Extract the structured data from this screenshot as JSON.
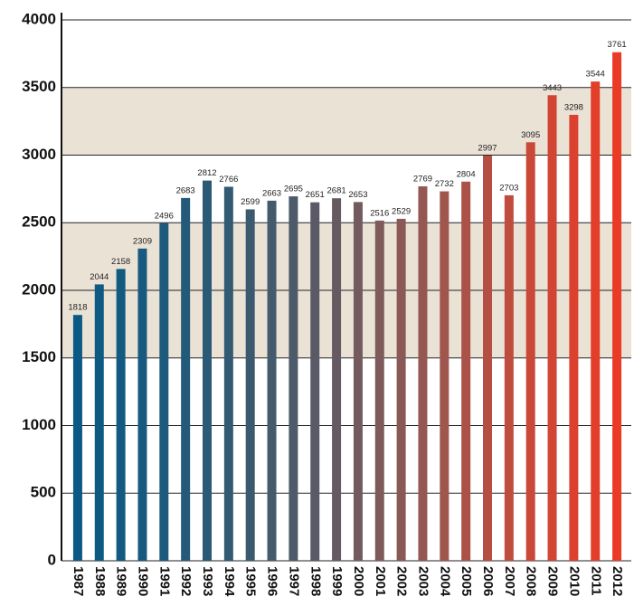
{
  "chart_data": {
    "type": "bar",
    "categories": [
      "1987",
      "1988",
      "1989",
      "1990",
      "1991",
      "1992",
      "1993",
      "1994",
      "1995",
      "1996",
      "1997",
      "1998",
      "1999",
      "2000",
      "2001",
      "2002",
      "2003",
      "2004",
      "2005",
      "2006",
      "2007",
      "2008",
      "2009",
      "2010",
      "2011",
      "2012"
    ],
    "values": [
      1818,
      2044,
      2158,
      2309,
      2496,
      2683,
      2812,
      2766,
      2599,
      2663,
      2695,
      2651,
      2681,
      2653,
      2516,
      2529,
      2769,
      2732,
      2804,
      2997,
      2703,
      3095,
      3443,
      3298,
      3544,
      3761
    ],
    "colors": [
      "#0b5a85",
      "#0f5a83",
      "#135a81",
      "#185a7f",
      "#1d5a7c",
      "#245a79",
      "#2b5a76",
      "#335a73",
      "#3b5a70",
      "#445a6d",
      "#4d5a6a",
      "#5a5a66",
      "#665a62",
      "#735a5e",
      "#7e5a5a",
      "#8a5956",
      "#955752",
      "#a0554d",
      "#ab5248",
      "#b54f43",
      "#c04c3e",
      "#c94838",
      "#d24433",
      "#db412e",
      "#e33e2a",
      "#ea3b26"
    ],
    "ylim": [
      0,
      4000
    ],
    "yticks": [
      0,
      500,
      1000,
      1500,
      2000,
      2500,
      3000,
      3500,
      4000
    ],
    "grid": true
  }
}
